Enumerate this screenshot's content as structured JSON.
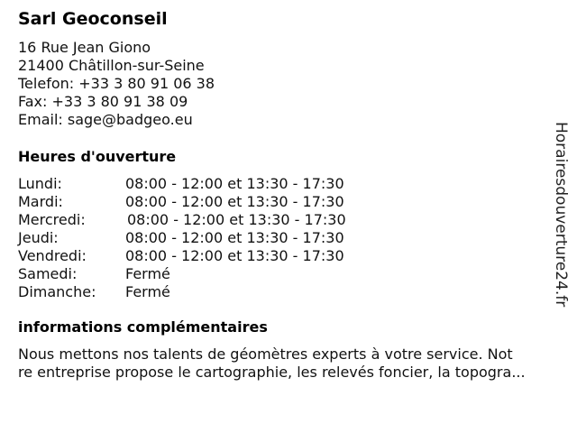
{
  "company": {
    "name": "Sarl Geoconseil",
    "address_line1": "16 Rue Jean Giono",
    "address_line2": "21400 Châtillon-sur-Seine",
    "phone": "Telefon: +33 3 80 91 06 38",
    "fax": "Fax: +33 3 80 91 38 09",
    "email": "Email: sage@badgeo.eu"
  },
  "hours": {
    "heading": "Heures d'ouverture",
    "rows": [
      {
        "day": "Lundi:",
        "time": "08:00 - 12:00 et 13:30 - 17:30"
      },
      {
        "day": "Mardi:",
        "time": "08:00 - 12:00 et 13:30 - 17:30"
      },
      {
        "day": "Mercredi:",
        "time": "08:00 - 12:00 et 13:30 - 17:30"
      },
      {
        "day": "Jeudi:",
        "time": "08:00 - 12:00 et 13:30 - 17:30"
      },
      {
        "day": "Vendredi:",
        "time": "08:00 - 12:00 et 13:30 - 17:30"
      },
      {
        "day": "Samedi:",
        "time": "Fermé"
      },
      {
        "day": "Dimanche:",
        "time": "Fermé"
      }
    ]
  },
  "info": {
    "heading": "informations complémentaires",
    "line1": "Nous mettons nos talents de géomètres experts à votre service. Not",
    "line2": "re entreprise propose le cartographie, les relevés foncier, la topogra..."
  },
  "watermark": "Horairesdouverture24.fr"
}
